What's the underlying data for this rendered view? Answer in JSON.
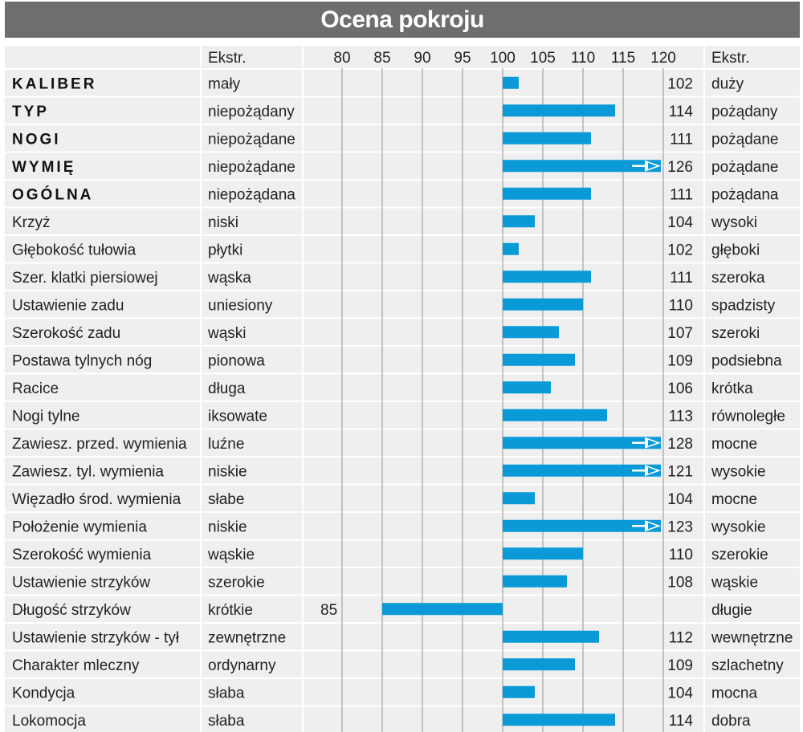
{
  "title": "Ocena pokroju",
  "headers": {
    "extreme_left": "Ekstr.",
    "extreme_right": "Ekstr."
  },
  "colors": {
    "bar": "#0a9ad8",
    "header_bg": "#6e6e6e",
    "row_bg": "#efefef",
    "separator": "#ffffff",
    "grid": "#b4b4b4"
  },
  "chart_data": {
    "type": "bar",
    "orientation": "horizontal",
    "baseline": 100,
    "xlim": [
      80,
      120
    ],
    "xticks": [
      "80",
      "85",
      "90",
      "95",
      "100",
      "105",
      "110",
      "115",
      "120"
    ],
    "grid": true,
    "rows": [
      {
        "trait": "KALIBER",
        "bold": true,
        "low": "mały",
        "value": 102,
        "label": "102",
        "high": "duży"
      },
      {
        "trait": "TYP",
        "bold": true,
        "low": "niepożądany",
        "value": 114,
        "label": "114",
        "high": "pożądany"
      },
      {
        "trait": "NOGI",
        "bold": true,
        "low": "niepożądane",
        "value": 111,
        "label": "111",
        "high": "pożądane"
      },
      {
        "trait": "WYMIĘ",
        "bold": true,
        "low": "niepożądane",
        "value": 126,
        "label": "126",
        "high": "pożądane"
      },
      {
        "trait": "OGÓLNA",
        "bold": true,
        "low": "niepożądana",
        "value": 111,
        "label": "111",
        "high": "pożądana"
      },
      {
        "trait": "Krzyż",
        "bold": false,
        "low": "niski",
        "value": 104,
        "label": "104",
        "high": "wysoki"
      },
      {
        "trait": "Głębokość tułowia",
        "bold": false,
        "low": "płytki",
        "value": 102,
        "label": "102",
        "high": "głęboki"
      },
      {
        "trait": "Szer. klatki piersiowej",
        "bold": false,
        "low": "wąska",
        "value": 111,
        "label": "111",
        "high": "szeroka"
      },
      {
        "trait": "Ustawienie zadu",
        "bold": false,
        "low": "uniesiony",
        "value": 110,
        "label": "110",
        "high": "spadzisty"
      },
      {
        "trait": "Szerokość zadu",
        "bold": false,
        "low": "wąski",
        "value": 107,
        "label": "107",
        "high": "szeroki"
      },
      {
        "trait": "Postawa tylnych nóg",
        "bold": false,
        "low": "pionowa",
        "value": 109,
        "label": "109",
        "high": "podsiebna"
      },
      {
        "trait": "Racice",
        "bold": false,
        "low": "długa",
        "value": 106,
        "label": "106",
        "high": "krótka"
      },
      {
        "trait": "Nogi tylne",
        "bold": false,
        "low": "iksowate",
        "value": 113,
        "label": "113",
        "high": "równoległe"
      },
      {
        "trait": "Zawiesz. przed. wymienia",
        "bold": false,
        "low": "luźne",
        "value": 128,
        "label": "128",
        "high": "mocne"
      },
      {
        "trait": "Zawiesz. tyl. wymienia",
        "bold": false,
        "low": "niskie",
        "value": 121,
        "label": "121",
        "high": "wysokie"
      },
      {
        "trait": "Więzadło środ. wymienia",
        "bold": false,
        "low": "słabe",
        "value": 104,
        "label": "104",
        "high": "mocne"
      },
      {
        "trait": "Położenie wymienia",
        "bold": false,
        "low": "niskie",
        "value": 123,
        "label": "123",
        "high": "wysokie"
      },
      {
        "trait": "Szerokość wymienia",
        "bold": false,
        "low": "wąskie",
        "value": 110,
        "label": "110",
        "high": "szerokie"
      },
      {
        "trait": "Ustawienie strzyków",
        "bold": false,
        "low": "szerokie",
        "value": 108,
        "label": "108",
        "high": "wąskie"
      },
      {
        "trait": "Długość strzyków",
        "bold": false,
        "low": "krótkie",
        "value": 85,
        "label": "85",
        "high": "długie"
      },
      {
        "trait": "Ustawienie strzyków - tył",
        "bold": false,
        "low": "zewnętrzne",
        "value": 112,
        "label": "112",
        "high": "wewnętrzne"
      },
      {
        "trait": "Charakter mleczny",
        "bold": false,
        "low": "ordynarny",
        "value": 109,
        "label": "109",
        "high": "szlachetny"
      },
      {
        "trait": "Kondycja",
        "bold": false,
        "low": "słaba",
        "value": 104,
        "label": "104",
        "high": "mocna"
      },
      {
        "trait": "Lokomocja",
        "bold": false,
        "low": "słaba",
        "value": 114,
        "label": "114",
        "high": "dobra"
      }
    ]
  }
}
